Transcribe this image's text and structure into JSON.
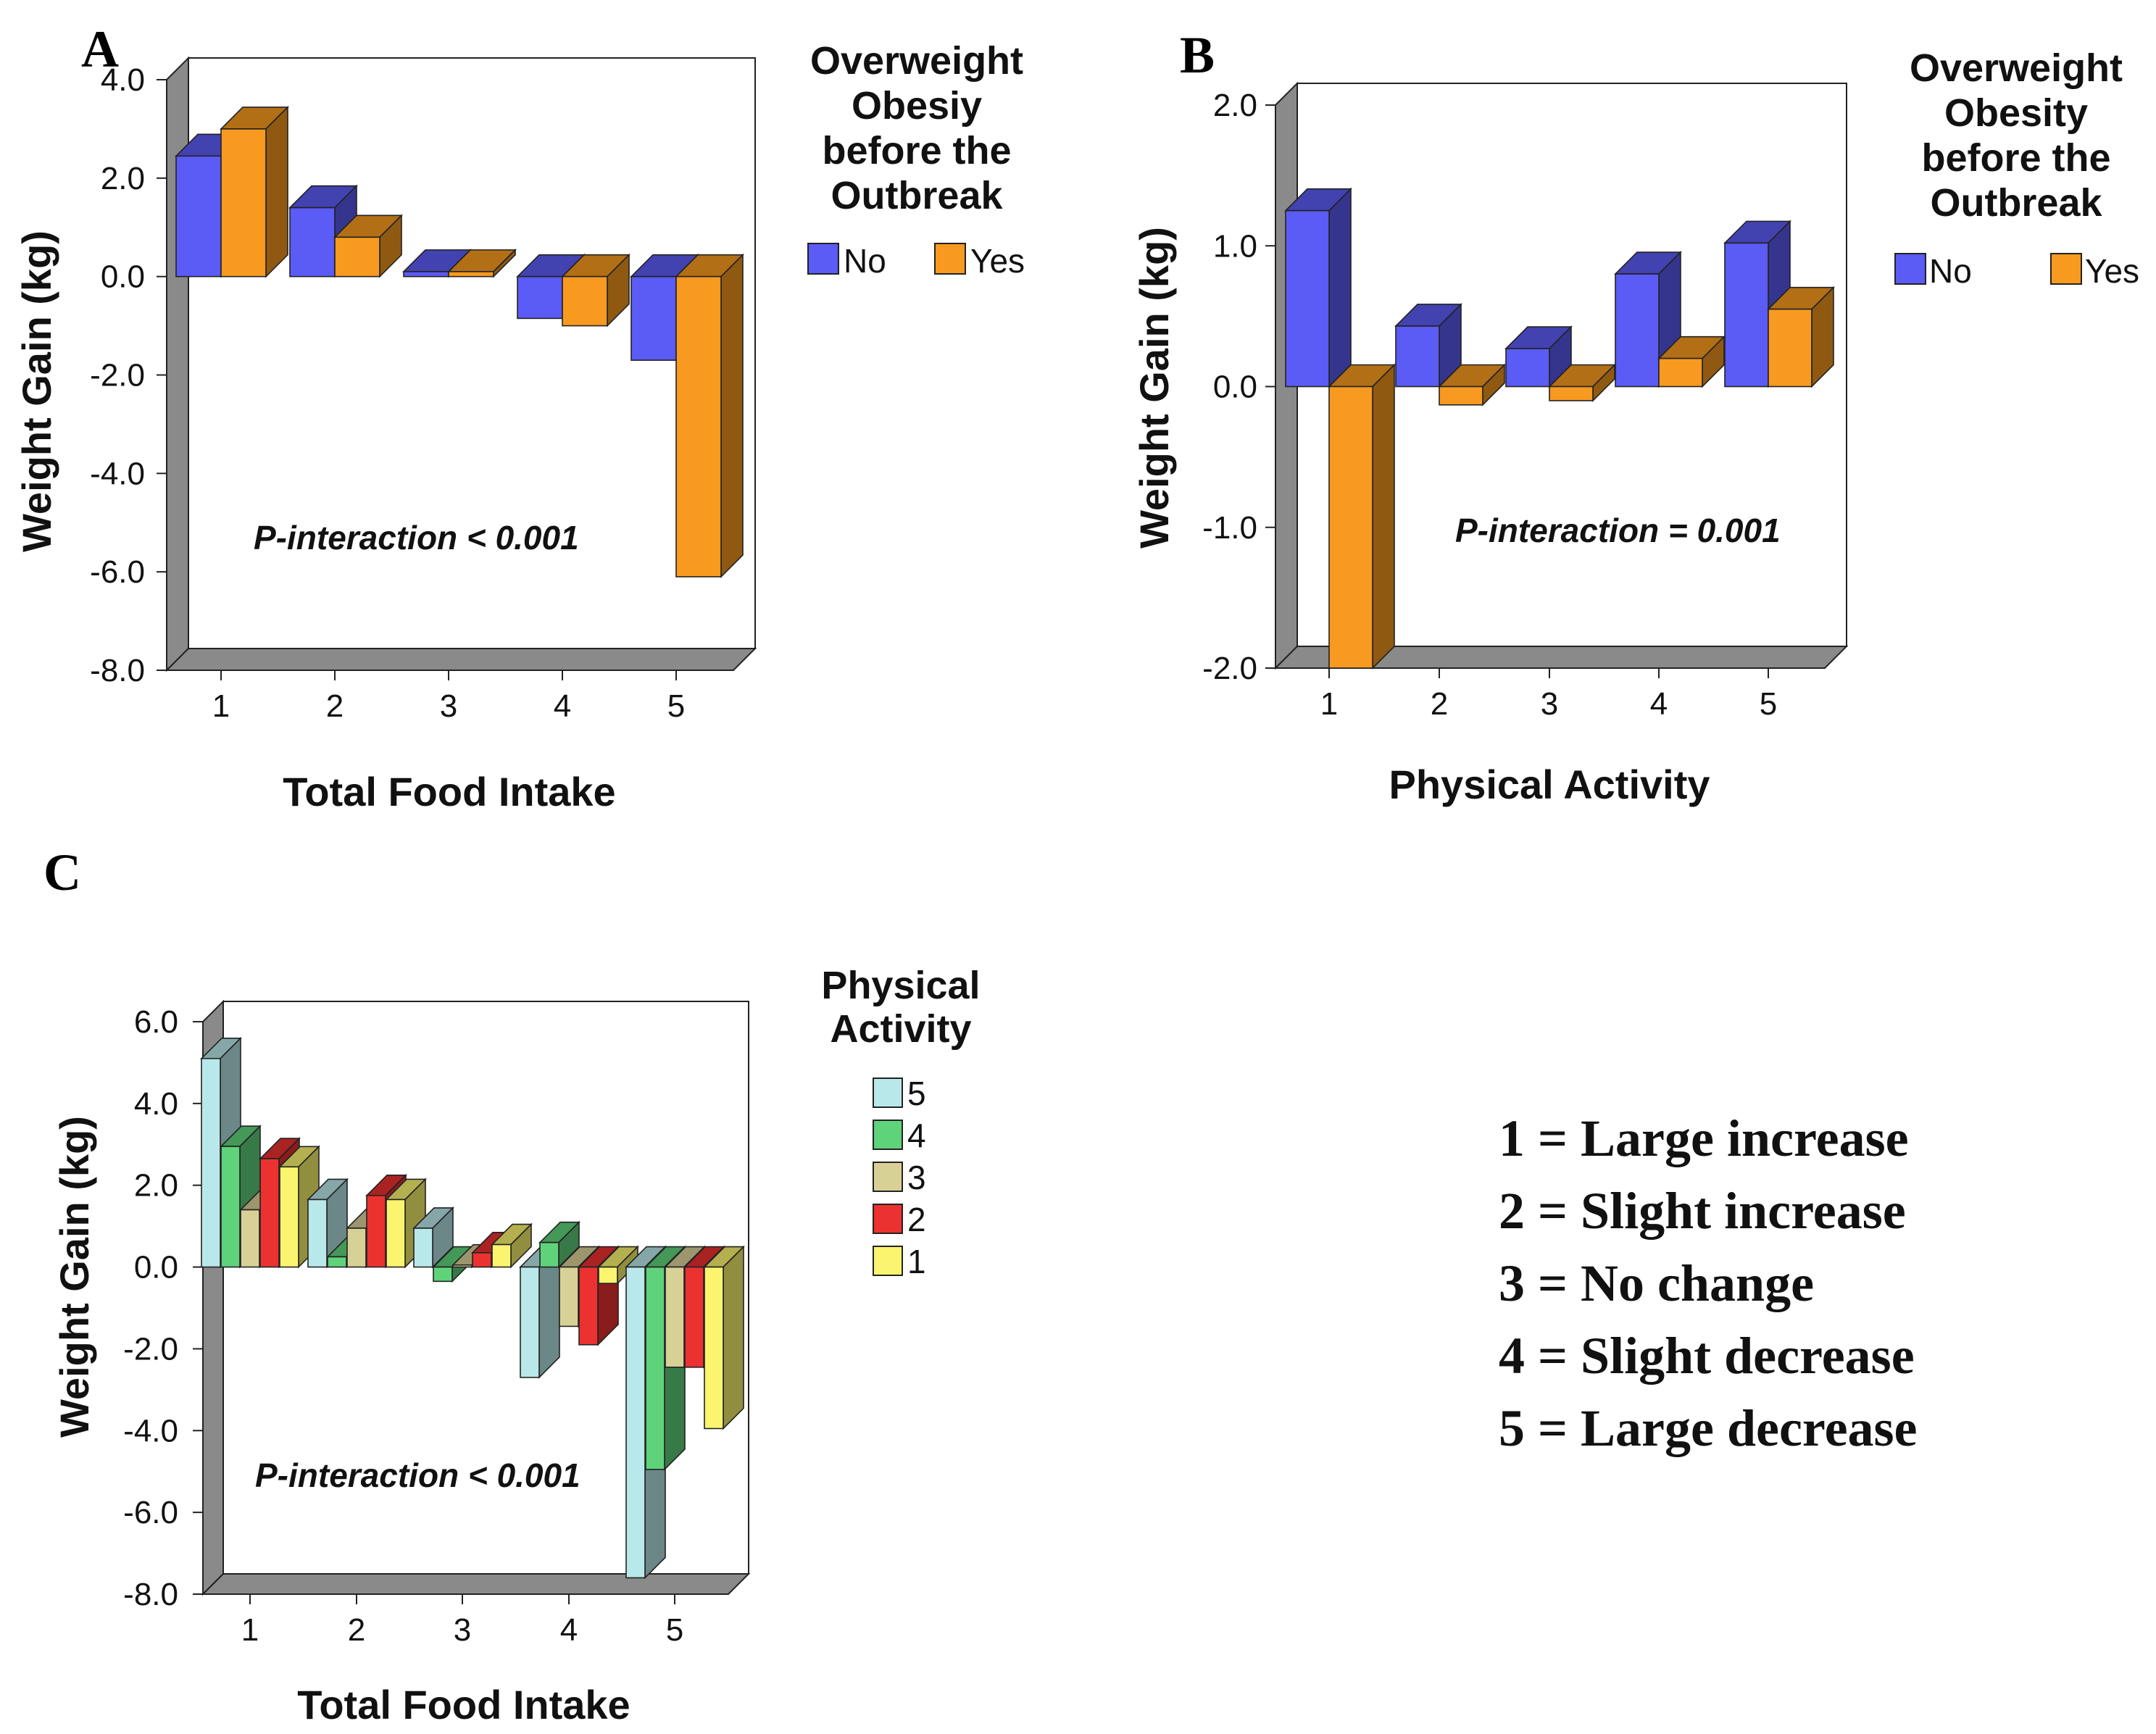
{
  "colors": {
    "no": "#5b5bf5",
    "yes": "#f79a1f",
    "pa5": "#b9e8ea",
    "pa4": "#5fd37a",
    "pa3": "#d8d196",
    "pa2": "#ec3131",
    "pa1": "#fbf46e",
    "wall": "#8a8a8a"
  },
  "legend_codes": [
    "1 = Large increase",
    "2 = Slight increase",
    "3 = No change",
    "4 = Slight decrease",
    "5 = Large decrease"
  ],
  "chart_data": [
    {
      "id": "A",
      "panel_label": "A",
      "type": "bar",
      "title": "",
      "xlabel": "Total Food Intake",
      "ylabel": "Weight Gain (kg)",
      "ylim": [
        -8,
        4
      ],
      "yticks": [
        "4.0",
        "2.0",
        "0.0",
        "-2.0",
        "-4.0",
        "-6.0",
        "-8.0"
      ],
      "categories": [
        "1",
        "2",
        "3",
        "4",
        "5"
      ],
      "legend_title": [
        "Overweight",
        "Obesiy",
        "before the",
        "Outbreak"
      ],
      "annotation": "P-interaction < 0.001",
      "series": [
        {
          "name": "No",
          "color_key": "no",
          "values": [
            2.45,
            1.4,
            0.1,
            -0.85,
            -1.7
          ]
        },
        {
          "name": "Yes",
          "color_key": "yes",
          "values": [
            3.0,
            0.8,
            0.1,
            -1.0,
            -6.1
          ]
        }
      ]
    },
    {
      "id": "B",
      "panel_label": "B",
      "type": "bar",
      "title": "",
      "xlabel": "Physical Activity",
      "ylabel": "Weight Gain (kg)",
      "ylim": [
        -2,
        2
      ],
      "yticks": [
        "2.0",
        "1.0",
        "0.0",
        "-1.0",
        "-2.0"
      ],
      "categories": [
        "1",
        "2",
        "3",
        "4",
        "5"
      ],
      "legend_title": [
        "Overweight",
        "Obesity",
        "before the",
        "Outbreak"
      ],
      "annotation": "P-interaction = 0.001",
      "series": [
        {
          "name": "No",
          "color_key": "no",
          "values": [
            1.25,
            0.43,
            0.27,
            0.8,
            1.02
          ]
        },
        {
          "name": "Yes",
          "color_key": "yes",
          "values": [
            -2.0,
            -0.13,
            -0.1,
            0.2,
            0.55
          ]
        }
      ]
    },
    {
      "id": "C",
      "panel_label": "C",
      "type": "bar",
      "title": "",
      "xlabel": "Total Food Intake",
      "ylabel": "Weight Gain (kg)",
      "ylim": [
        -8,
        6
      ],
      "yticks": [
        "6.0",
        "4.0",
        "2.0",
        "0.0",
        "-2.0",
        "-4.0",
        "-6.0",
        "-8.0"
      ],
      "categories": [
        "1",
        "2",
        "3",
        "4",
        "5"
      ],
      "legend_title": [
        "Physical",
        "Activity"
      ],
      "annotation": "P-interaction < 0.001",
      "series": [
        {
          "name": "5",
          "color_key": "pa5",
          "values": [
            5.1,
            1.65,
            0.95,
            -2.7,
            -7.6
          ]
        },
        {
          "name": "4",
          "color_key": "pa4",
          "values": [
            2.95,
            0.25,
            -0.35,
            0.6,
            -4.95
          ]
        },
        {
          "name": "3",
          "color_key": "pa3",
          "values": [
            1.4,
            0.95,
            0.05,
            -1.45,
            -2.45
          ]
        },
        {
          "name": "2",
          "color_key": "pa2",
          "values": [
            2.65,
            1.75,
            0.35,
            -1.9,
            -2.45
          ]
        },
        {
          "name": "1",
          "color_key": "pa1",
          "values": [
            2.45,
            1.65,
            0.55,
            -0.4,
            -3.95
          ]
        }
      ]
    }
  ]
}
